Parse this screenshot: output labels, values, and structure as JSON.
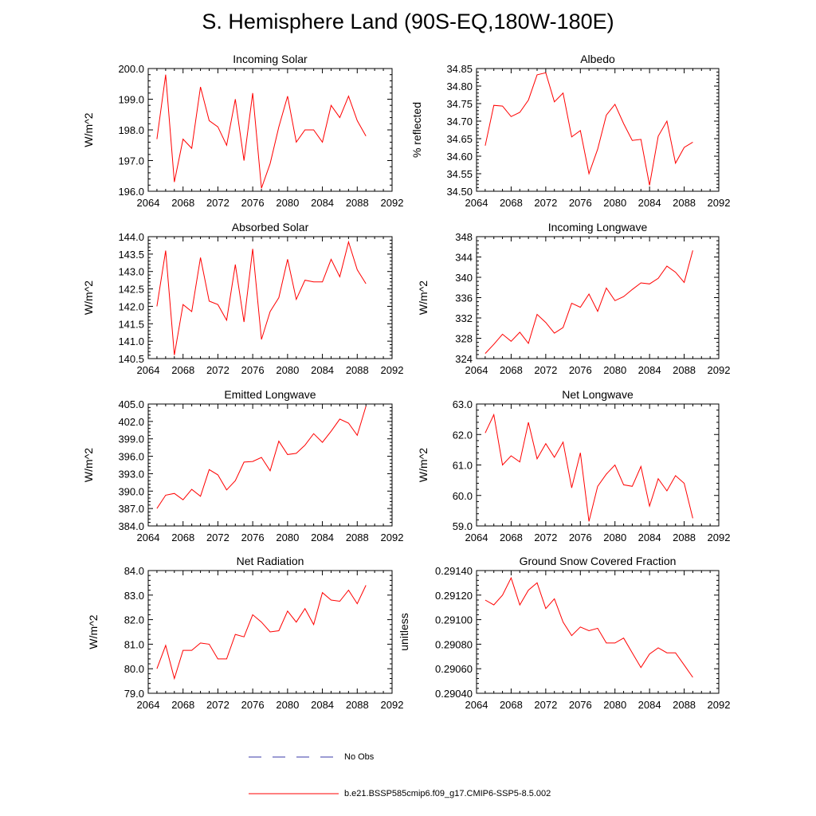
{
  "figure": {
    "title": "S. Hemisphere Land (90S-EQ,180W-180E)",
    "legend": [
      {
        "label": "No Obs",
        "color": "#3a3aa8",
        "style": "dashed"
      },
      {
        "label": "b.e21.BSSP585cmip6.f09_g17.CMIP6-SSP5-8.5.002",
        "color": "#ff0000",
        "style": "solid"
      }
    ]
  },
  "chart_data": [
    {
      "type": "line",
      "title": "Incoming Solar",
      "ylabel": "W/m^2",
      "xlim": [
        2064,
        2092
      ],
      "ylim": [
        196.0,
        200.0
      ],
      "xticks": [
        "2064",
        "2068",
        "2072",
        "2076",
        "2080",
        "2084",
        "2088",
        "2092"
      ],
      "yticks": [
        "196.0",
        "197.0",
        "198.0",
        "199.0",
        "200.0"
      ],
      "series": [
        {
          "color": "#ff0000",
          "x": [
            2065,
            2066,
            2067,
            2068,
            2069,
            2070,
            2071,
            2072,
            2073,
            2074,
            2075,
            2076,
            2077,
            2078,
            2079,
            2080,
            2081,
            2082,
            2083,
            2084,
            2085,
            2086,
            2087,
            2088,
            2089
          ],
          "y": [
            197.7,
            199.8,
            196.3,
            197.7,
            197.4,
            199.4,
            198.3,
            198.1,
            197.5,
            199.0,
            197.0,
            199.2,
            196.1,
            196.9,
            198.1,
            199.1,
            197.6,
            198.0,
            198.0,
            197.6,
            198.8,
            198.4,
            199.1,
            198.3,
            197.8
          ]
        }
      ]
    },
    {
      "type": "line",
      "title": "Albedo",
      "ylabel": "% reflected",
      "xlim": [
        2064,
        2092
      ],
      "ylim": [
        34.5,
        34.85
      ],
      "xticks": [
        "2064",
        "2068",
        "2072",
        "2076",
        "2080",
        "2084",
        "2088",
        "2092"
      ],
      "yticks": [
        "34.50",
        "34.55",
        "34.60",
        "34.65",
        "34.70",
        "34.75",
        "34.80",
        "34.85"
      ],
      "series": [
        {
          "color": "#ff0000",
          "x": [
            2065,
            2066,
            2067,
            2068,
            2069,
            2070,
            2071,
            2072,
            2073,
            2074,
            2075,
            2076,
            2077,
            2078,
            2079,
            2080,
            2081,
            2082,
            2083,
            2084,
            2085,
            2086,
            2087,
            2088,
            2089
          ],
          "y": [
            34.63,
            34.745,
            34.743,
            34.713,
            34.725,
            34.76,
            34.832,
            34.838,
            34.755,
            34.78,
            34.655,
            34.673,
            34.55,
            34.62,
            34.717,
            34.748,
            34.693,
            34.645,
            34.648,
            34.517,
            34.657,
            34.7,
            34.58,
            34.625,
            34.64
          ]
        }
      ]
    },
    {
      "type": "line",
      "title": "Absorbed Solar",
      "ylabel": "W/m^2",
      "xlim": [
        2064,
        2092
      ],
      "ylim": [
        140.5,
        144.0
      ],
      "xticks": [
        "2064",
        "2068",
        "2072",
        "2076",
        "2080",
        "2084",
        "2088",
        "2092"
      ],
      "yticks": [
        "140.5",
        "141.0",
        "141.5",
        "142.0",
        "142.5",
        "143.0",
        "143.5",
        "144.0"
      ],
      "series": [
        {
          "color": "#ff0000",
          "x": [
            2065,
            2066,
            2067,
            2068,
            2069,
            2070,
            2071,
            2072,
            2073,
            2074,
            2075,
            2076,
            2077,
            2078,
            2079,
            2080,
            2081,
            2082,
            2083,
            2084,
            2085,
            2086,
            2087,
            2088,
            2089
          ],
          "y": [
            142.0,
            143.6,
            140.6,
            142.05,
            141.85,
            143.4,
            142.15,
            142.05,
            141.6,
            143.2,
            141.55,
            143.65,
            141.05,
            141.85,
            142.25,
            143.35,
            142.2,
            142.75,
            142.7,
            142.7,
            143.35,
            142.85,
            143.85,
            143.05,
            142.65
          ]
        }
      ]
    },
    {
      "type": "line",
      "title": "Incoming Longwave",
      "ylabel": "W/m^2",
      "xlim": [
        2064,
        2092
      ],
      "ylim": [
        324,
        348
      ],
      "xticks": [
        "2064",
        "2068",
        "2072",
        "2076",
        "2080",
        "2084",
        "2088",
        "2092"
      ],
      "yticks": [
        "324",
        "328",
        "332",
        "336",
        "340",
        "344",
        "348"
      ],
      "series": [
        {
          "color": "#ff0000",
          "x": [
            2065,
            2066,
            2067,
            2068,
            2069,
            2070,
            2071,
            2072,
            2073,
            2074,
            2075,
            2076,
            2077,
            2078,
            2079,
            2080,
            2081,
            2082,
            2083,
            2084,
            2085,
            2086,
            2087,
            2088,
            2089
          ],
          "y": [
            325.0,
            326.8,
            328.8,
            327.4,
            329.2,
            327.0,
            332.7,
            331.1,
            329.0,
            330.1,
            334.9,
            334.1,
            336.7,
            333.3,
            337.9,
            335.4,
            336.2,
            337.6,
            338.9,
            338.7,
            339.8,
            342.2,
            341.0,
            339.0,
            345.3
          ]
        }
      ]
    },
    {
      "type": "line",
      "title": "Emitted Longwave",
      "ylabel": "W/m^2",
      "xlim": [
        2064,
        2092
      ],
      "ylim": [
        384.0,
        405.0
      ],
      "xticks": [
        "2064",
        "2068",
        "2072",
        "2076",
        "2080",
        "2084",
        "2088",
        "2092"
      ],
      "yticks": [
        "384.0",
        "387.0",
        "390.0",
        "393.0",
        "396.0",
        "399.0",
        "402.0",
        "405.0"
      ],
      "series": [
        {
          "color": "#ff0000",
          "x": [
            2065,
            2066,
            2067,
            2068,
            2069,
            2070,
            2071,
            2072,
            2073,
            2074,
            2075,
            2076,
            2077,
            2078,
            2079,
            2080,
            2081,
            2082,
            2083,
            2084,
            2085,
            2086,
            2087,
            2088,
            2089
          ],
          "y": [
            387.0,
            389.3,
            389.6,
            388.5,
            390.3,
            389.1,
            393.7,
            392.8,
            390.2,
            391.8,
            395.0,
            395.1,
            395.8,
            393.5,
            398.6,
            396.3,
            396.5,
            397.9,
            399.9,
            398.4,
            400.3,
            402.4,
            401.7,
            399.6,
            404.6
          ]
        }
      ]
    },
    {
      "type": "line",
      "title": "Net Longwave",
      "ylabel": "W/m^2",
      "xlim": [
        2064,
        2092
      ],
      "ylim": [
        59.0,
        63.0
      ],
      "xticks": [
        "2064",
        "2068",
        "2072",
        "2076",
        "2080",
        "2084",
        "2088",
        "2092"
      ],
      "yticks": [
        "59.0",
        "60.0",
        "61.0",
        "62.0",
        "63.0"
      ],
      "series": [
        {
          "color": "#ff0000",
          "x": [
            2065,
            2066,
            2067,
            2068,
            2069,
            2070,
            2071,
            2072,
            2073,
            2074,
            2075,
            2076,
            2077,
            2078,
            2079,
            2080,
            2081,
            2082,
            2083,
            2084,
            2085,
            2086,
            2087,
            2088,
            2089
          ],
          "y": [
            62.05,
            62.65,
            61.0,
            61.3,
            61.1,
            62.4,
            61.2,
            61.7,
            61.25,
            61.75,
            60.25,
            61.4,
            59.15,
            60.3,
            60.7,
            61.0,
            60.35,
            60.3,
            60.95,
            59.65,
            60.55,
            60.15,
            60.65,
            60.4,
            59.25
          ]
        }
      ]
    },
    {
      "type": "line",
      "title": "Net Radiation",
      "ylabel": "W/m^2",
      "xlim": [
        2064,
        2092
      ],
      "ylim": [
        79.0,
        84.0
      ],
      "xticks": [
        "2064",
        "2068",
        "2072",
        "2076",
        "2080",
        "2084",
        "2088",
        "2092"
      ],
      "yticks": [
        "79.0",
        "80.0",
        "81.0",
        "82.0",
        "83.0",
        "84.0"
      ],
      "series": [
        {
          "color": "#ff0000",
          "x": [
            2065,
            2066,
            2067,
            2068,
            2069,
            2070,
            2071,
            2072,
            2073,
            2074,
            2075,
            2076,
            2077,
            2078,
            2079,
            2080,
            2081,
            2082,
            2083,
            2084,
            2085,
            2086,
            2087,
            2088,
            2089
          ],
          "y": [
            80.0,
            80.95,
            79.6,
            80.75,
            80.75,
            81.05,
            81.0,
            80.4,
            80.4,
            81.4,
            81.3,
            82.2,
            81.9,
            81.5,
            81.55,
            82.35,
            81.9,
            82.45,
            81.8,
            83.1,
            82.8,
            82.75,
            83.2,
            82.65,
            83.4
          ]
        }
      ]
    },
    {
      "type": "line",
      "title": "Ground Snow Covered Fraction",
      "ylabel": "unitless",
      "xlim": [
        2064,
        2092
      ],
      "ylim": [
        0.2904,
        0.2914
      ],
      "xticks": [
        "2064",
        "2068",
        "2072",
        "2076",
        "2080",
        "2084",
        "2088",
        "2092"
      ],
      "yticks": [
        "0.29040",
        "0.29060",
        "0.29080",
        "0.29100",
        "0.29120",
        "0.29140"
      ],
      "series": [
        {
          "color": "#ff0000",
          "x": [
            2065,
            2066,
            2067,
            2068,
            2069,
            2070,
            2071,
            2072,
            2073,
            2074,
            2075,
            2076,
            2077,
            2078,
            2079,
            2080,
            2081,
            2082,
            2083,
            2084,
            2085,
            2086,
            2087,
            2088,
            2089
          ],
          "y": [
            0.29116,
            0.29112,
            0.2912,
            0.29134,
            0.29112,
            0.29124,
            0.2913,
            0.29109,
            0.29117,
            0.29098,
            0.29087,
            0.29094,
            0.29091,
            0.29093,
            0.29081,
            0.29081,
            0.29085,
            0.29073,
            0.29061,
            0.29072,
            0.29077,
            0.29073,
            0.29073,
            0.29063,
            0.29053
          ]
        }
      ]
    }
  ]
}
